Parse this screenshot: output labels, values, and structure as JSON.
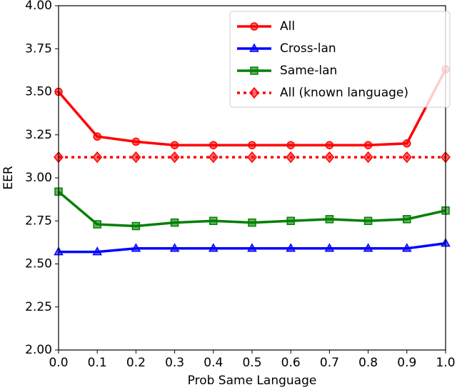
{
  "chart_data": {
    "type": "line",
    "x_label": "Prob Same Language",
    "y_label": "EER",
    "x": [
      {
        "value": 0,
        "label": "0.0"
      },
      0.1,
      0.2,
      0.3,
      0.4,
      0.5,
      0.6,
      0.7,
      0.8,
      0.9,
      {
        "value": 1,
        "label": "1.0"
      }
    ],
    "xlim": [
      0,
      1
    ],
    "xticks": [
      {
        "value": 0,
        "label": "0.0"
      },
      0.1,
      0.2,
      0.3,
      0.4,
      0.5,
      0.6,
      0.7,
      0.8,
      0.9,
      {
        "value": 1,
        "label": "1.0"
      }
    ],
    "ylim": [
      2,
      4
    ],
    "yticks": [
      {
        "value": 2,
        "label": "2.00"
      },
      2.25,
      {
        "value": 2.5,
        "label": "2.50"
      },
      2.75,
      {
        "value": 3,
        "label": "3.00"
      },
      3.25,
      {
        "value": 3.5,
        "label": "3.50"
      },
      3.75,
      {
        "value": 4,
        "label": "4.00"
      }
    ],
    "grid": false,
    "legend": "upper right",
    "series": [
      {
        "name": "All",
        "color": "#ff0000",
        "marker": "circle",
        "linestyle": "solid",
        "values": [
          3.5,
          3.24,
          3.21,
          3.19,
          3.19,
          3.19,
          3.19,
          3.19,
          3.19,
          3.2,
          3.63
        ]
      },
      {
        "name": "Cross-lan",
        "color": "#0000ff",
        "marker": "triangle",
        "linestyle": "solid",
        "values": [
          2.57,
          2.57,
          2.59,
          2.59,
          2.59,
          2.59,
          2.59,
          2.59,
          2.59,
          2.59,
          2.62
        ]
      },
      {
        "name": "Same-lan",
        "color": "#008000",
        "marker": "square",
        "linestyle": "solid",
        "values": [
          2.92,
          2.73,
          2.72,
          2.74,
          2.75,
          2.74,
          2.75,
          2.76,
          2.75,
          2.76,
          2.81
        ]
      },
      {
        "name": "All (known language)",
        "color": "#ff0000",
        "marker": "diamond",
        "linestyle": "dotted",
        "values": [
          3.12,
          3.12,
          3.12,
          3.12,
          3.12,
          3.12,
          3.12,
          3.12,
          3.12,
          3.12,
          3.12
        ]
      }
    ]
  }
}
